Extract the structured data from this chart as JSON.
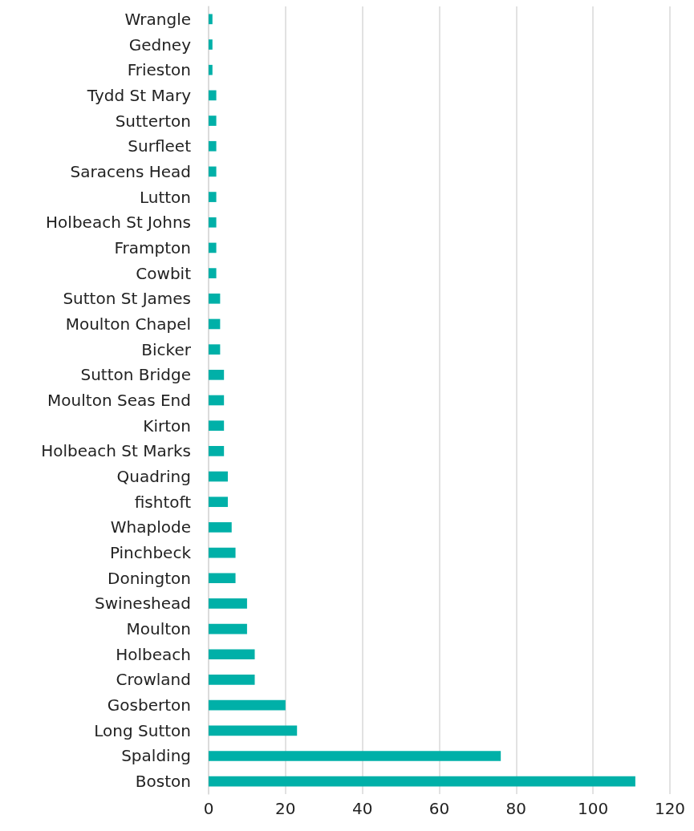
{
  "chart_data": {
    "type": "bar",
    "orientation": "horizontal",
    "categories": [
      "Wrangle",
      "Gedney",
      "Frieston",
      "Tydd St Mary",
      "Sutterton",
      "Surfleet",
      "Saracens Head",
      "Lutton",
      "Holbeach St Johns",
      "Frampton",
      "Cowbit",
      "Sutton St James",
      "Moulton Chapel",
      "Bicker",
      "Sutton Bridge",
      "Moulton Seas End",
      "Kirton",
      "Holbeach St Marks",
      "Quadring",
      "fishtoft",
      "Whaplode",
      "Pinchbeck",
      "Donington",
      "Swineshead",
      "Moulton",
      "Holbeach",
      "Crowland",
      "Gosberton",
      "Long Sutton",
      "Spalding",
      "Boston"
    ],
    "values": [
      1,
      1,
      1,
      2,
      2,
      2,
      2,
      2,
      2,
      2,
      2,
      3,
      3,
      3,
      4,
      4,
      4,
      4,
      5,
      5,
      6,
      7,
      7,
      10,
      10,
      12,
      12,
      20,
      23,
      76,
      111
    ],
    "color": "#00b0a8",
    "xlim": [
      0,
      120
    ],
    "xticks": [
      0,
      20,
      40,
      60,
      80,
      100,
      120
    ],
    "grid": "x"
  }
}
